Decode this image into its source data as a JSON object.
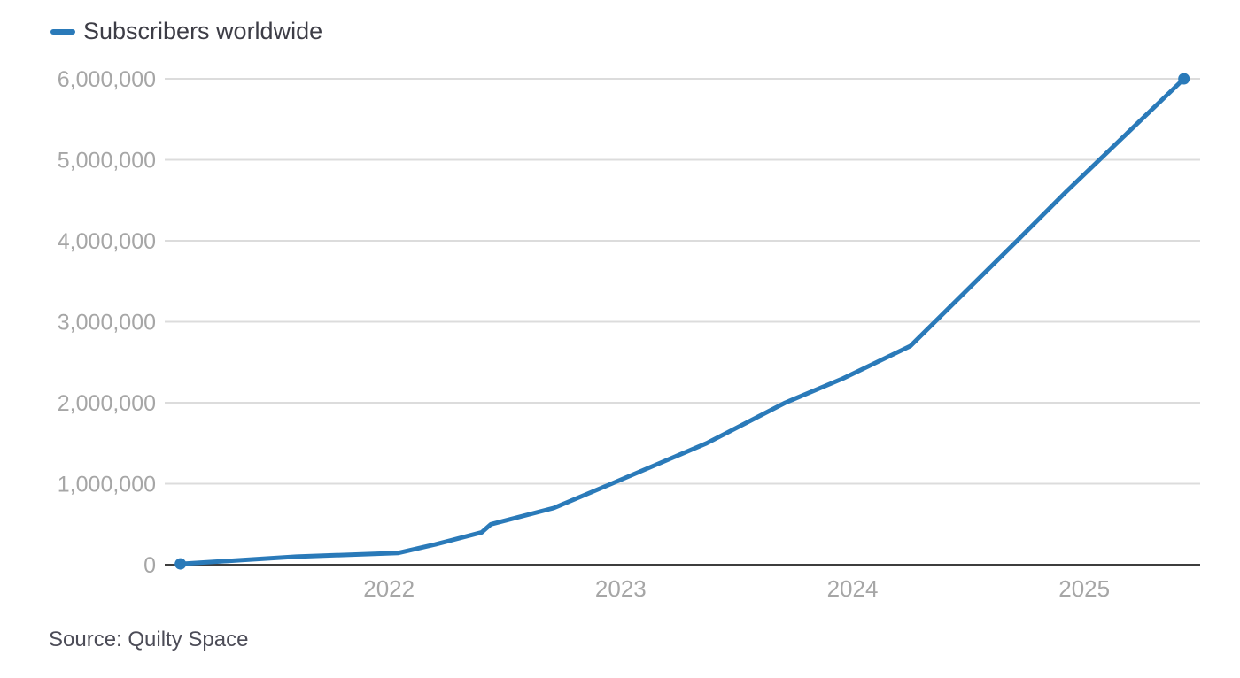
{
  "legend": {
    "label": "Subscribers worldwide"
  },
  "source": {
    "text": "Source: Quilty Space"
  },
  "colors": {
    "line": "#2a7ab9",
    "grid": "#dcdcdc",
    "axis": "#3e3e3e",
    "tick_text": "#a6a6a6",
    "legend_text": "#3d3d46",
    "source_text": "#4c4c57",
    "background": "#ffffff"
  },
  "chart_data": {
    "type": "line",
    "title": "Subscribers worldwide",
    "xlabel": "",
    "ylabel": "",
    "grid": "horizontal",
    "legend_position": "top-left",
    "x_domain": [
      2021.04,
      2025.5
    ],
    "y_domain": [
      0,
      6000000
    ],
    "x_ticks": [
      {
        "v": 2022,
        "label": "2022"
      },
      {
        "v": 2023,
        "label": "2023"
      },
      {
        "v": 2024,
        "label": "2024"
      },
      {
        "v": 2025,
        "label": "2025"
      }
    ],
    "y_ticks": [
      {
        "v": 6000000,
        "label": "6,000,000"
      },
      {
        "v": 5000000,
        "label": "5,000,000"
      },
      {
        "v": 4000000,
        "label": "4,000,000"
      },
      {
        "v": 3000000,
        "label": "3,000,000"
      },
      {
        "v": 2000000,
        "label": "2,000,000"
      },
      {
        "v": 1000000,
        "label": "1,000,000"
      },
      {
        "v": 0,
        "label": "0"
      }
    ],
    "series": [
      {
        "name": "Subscribers worldwide",
        "color": "#2a7ab9",
        "markers": "endpoints",
        "points": [
          [
            2021.1,
            10000
          ],
          [
            2021.6,
            100000
          ],
          [
            2022.04,
            145000
          ],
          [
            2022.2,
            250000
          ],
          [
            2022.4,
            400000
          ],
          [
            2022.44,
            500000
          ],
          [
            2022.71,
            700000
          ],
          [
            2022.96,
            1000000
          ],
          [
            2023.37,
            1500000
          ],
          [
            2023.71,
            2000000
          ],
          [
            2023.96,
            2300000
          ],
          [
            2024.25,
            2700000
          ],
          [
            2024.71,
            4000000
          ],
          [
            2024.92,
            4600000
          ],
          [
            2025.43,
            6000000
          ]
        ]
      }
    ],
    "source": "Source: Quilty Space"
  }
}
